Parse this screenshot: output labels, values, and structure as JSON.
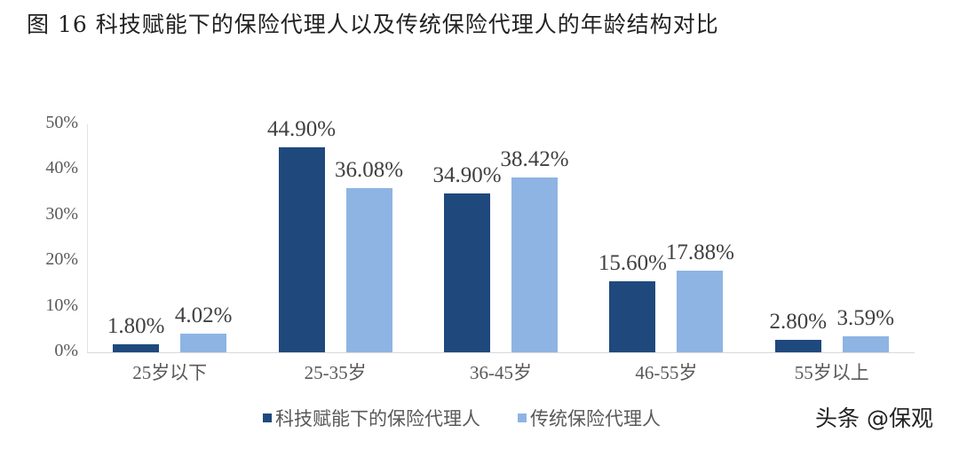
{
  "title": "图 16 科技赋能下的保险代理人以及传统保险代理人的年龄结构对比",
  "watermark": "头条 @保观",
  "colors": {
    "series1": "#1f497d",
    "series2": "#8eb4e3"
  },
  "chart_data": {
    "type": "bar",
    "title": "图 16 科技赋能下的保险代理人以及传统保险代理人的年龄结构对比",
    "categories": [
      "25岁以下",
      "25-35岁",
      "36-45岁",
      "46-55岁",
      "55岁以上"
    ],
    "series": [
      {
        "name": "科技赋能下的保险代理人",
        "values": [
          1.8,
          44.9,
          34.9,
          15.6,
          2.8
        ],
        "labels": [
          "1.80%",
          "44.90%",
          "34.90%",
          "15.60%",
          "2.80%"
        ]
      },
      {
        "name": "传统保险代理人",
        "values": [
          4.02,
          36.08,
          38.42,
          17.88,
          3.59
        ],
        "labels": [
          "4.02%",
          "36.08%",
          "38.42%",
          "17.88%",
          "3.59%"
        ]
      }
    ],
    "xlabel": "",
    "ylabel": "",
    "ylim": [
      0,
      50
    ],
    "yticks": [
      "0%",
      "10%",
      "20%",
      "30%",
      "40%",
      "50%"
    ],
    "grid": false,
    "legend_position": "bottom"
  }
}
